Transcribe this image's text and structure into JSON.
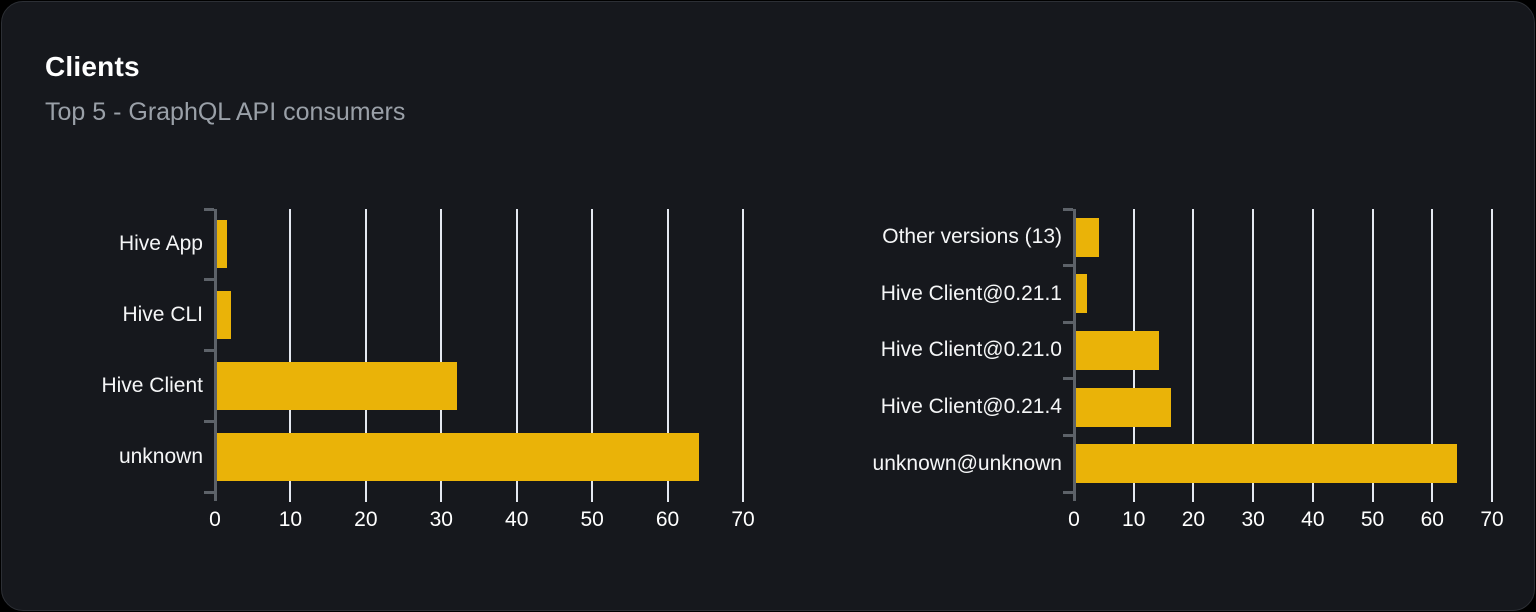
{
  "card": {
    "title": "Clients",
    "subtitle": "Top 5 - GraphQL API consumers"
  },
  "colors": {
    "bar": "#eab308",
    "page_background": "#000000",
    "card_background": "#16181d",
    "card_border": "#2c2f35",
    "title_text": "#ffffff",
    "subtitle_text": "#9aa0a8",
    "category_label_text": "#f5f6f7",
    "tick_label_text": "#ffffff",
    "gridline": "#e4e8f0",
    "axis": "#5d6269"
  },
  "chart_data": [
    {
      "name": "clients",
      "type": "bar",
      "orientation": "horizontal",
      "title": "",
      "categories": [
        "Hive App",
        "Hive CLI",
        "Hive Client",
        "unknown"
      ],
      "values": [
        1.5,
        2,
        32,
        64
      ],
      "category_order": "top-to-bottom",
      "xlabel": "",
      "ylabel": "",
      "xlim": [
        0,
        70
      ],
      "xticks": [
        0,
        10,
        20,
        30,
        40,
        50,
        60,
        70
      ],
      "grid": true,
      "legend": "none"
    },
    {
      "name": "client-versions",
      "type": "bar",
      "orientation": "horizontal",
      "title": "",
      "categories": [
        "Other versions (13)",
        "Hive Client@0.21.1",
        "Hive Client@0.21.0",
        "Hive Client@0.21.4",
        "unknown@unknown"
      ],
      "values": [
        4,
        2,
        14,
        16,
        64
      ],
      "category_order": "top-to-bottom",
      "xlabel": "",
      "ylabel": "",
      "xlim": [
        0,
        70
      ],
      "xticks": [
        0,
        10,
        20,
        30,
        40,
        50,
        60,
        70
      ],
      "grid": true,
      "legend": "none"
    }
  ]
}
